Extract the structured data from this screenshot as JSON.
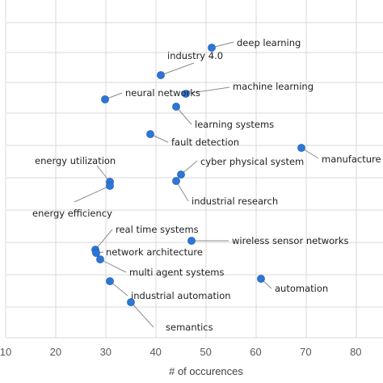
{
  "chart_data": {
    "type": "scatter",
    "xlabel": "# of occurences",
    "x_ticks": [
      10,
      20,
      30,
      40,
      50,
      60,
      70,
      80
    ],
    "xlim": [
      10,
      85
    ],
    "grid": true,
    "marker_color": "#2e75d4",
    "points": [
      {
        "label": "deep learning",
        "x": 51,
        "y": 15.5
      },
      {
        "label": "industry 4.0",
        "x": 41,
        "y": 14.5
      },
      {
        "label": "neural networks",
        "x": 30,
        "y": 13.5
      },
      {
        "label": "machine learning",
        "x": 46,
        "y": 14
      },
      {
        "label": "learning systems",
        "x": 44,
        "y": 13
      },
      {
        "label": "fault detection",
        "x": 39,
        "y": 12
      },
      {
        "label": "manufacture",
        "x": 69,
        "y": 11
      },
      {
        "label": "cyber physical system",
        "x": 45,
        "y": 10.2
      },
      {
        "label": "energy utilization",
        "x": 31,
        "y": 10
      },
      {
        "label": "energy efficiency",
        "x": 31,
        "y": 9.8
      },
      {
        "label": "industrial research",
        "x": 44,
        "y": 9.8
      },
      {
        "label": "wireless sensor networks",
        "x": 47,
        "y": 7.7
      },
      {
        "label": "real time systems",
        "x": 28,
        "y": 7.4
      },
      {
        "label": "network architecture",
        "x": 28,
        "y": 7.2
      },
      {
        "label": "multi agent systems",
        "x": 29,
        "y": 6.8
      },
      {
        "label": "industrial automation",
        "x": 31,
        "y": 5.6
      },
      {
        "label": "automation",
        "x": 61,
        "y": 5.6
      },
      {
        "label": "semantics",
        "x": 35,
        "y": 4.8
      }
    ]
  }
}
